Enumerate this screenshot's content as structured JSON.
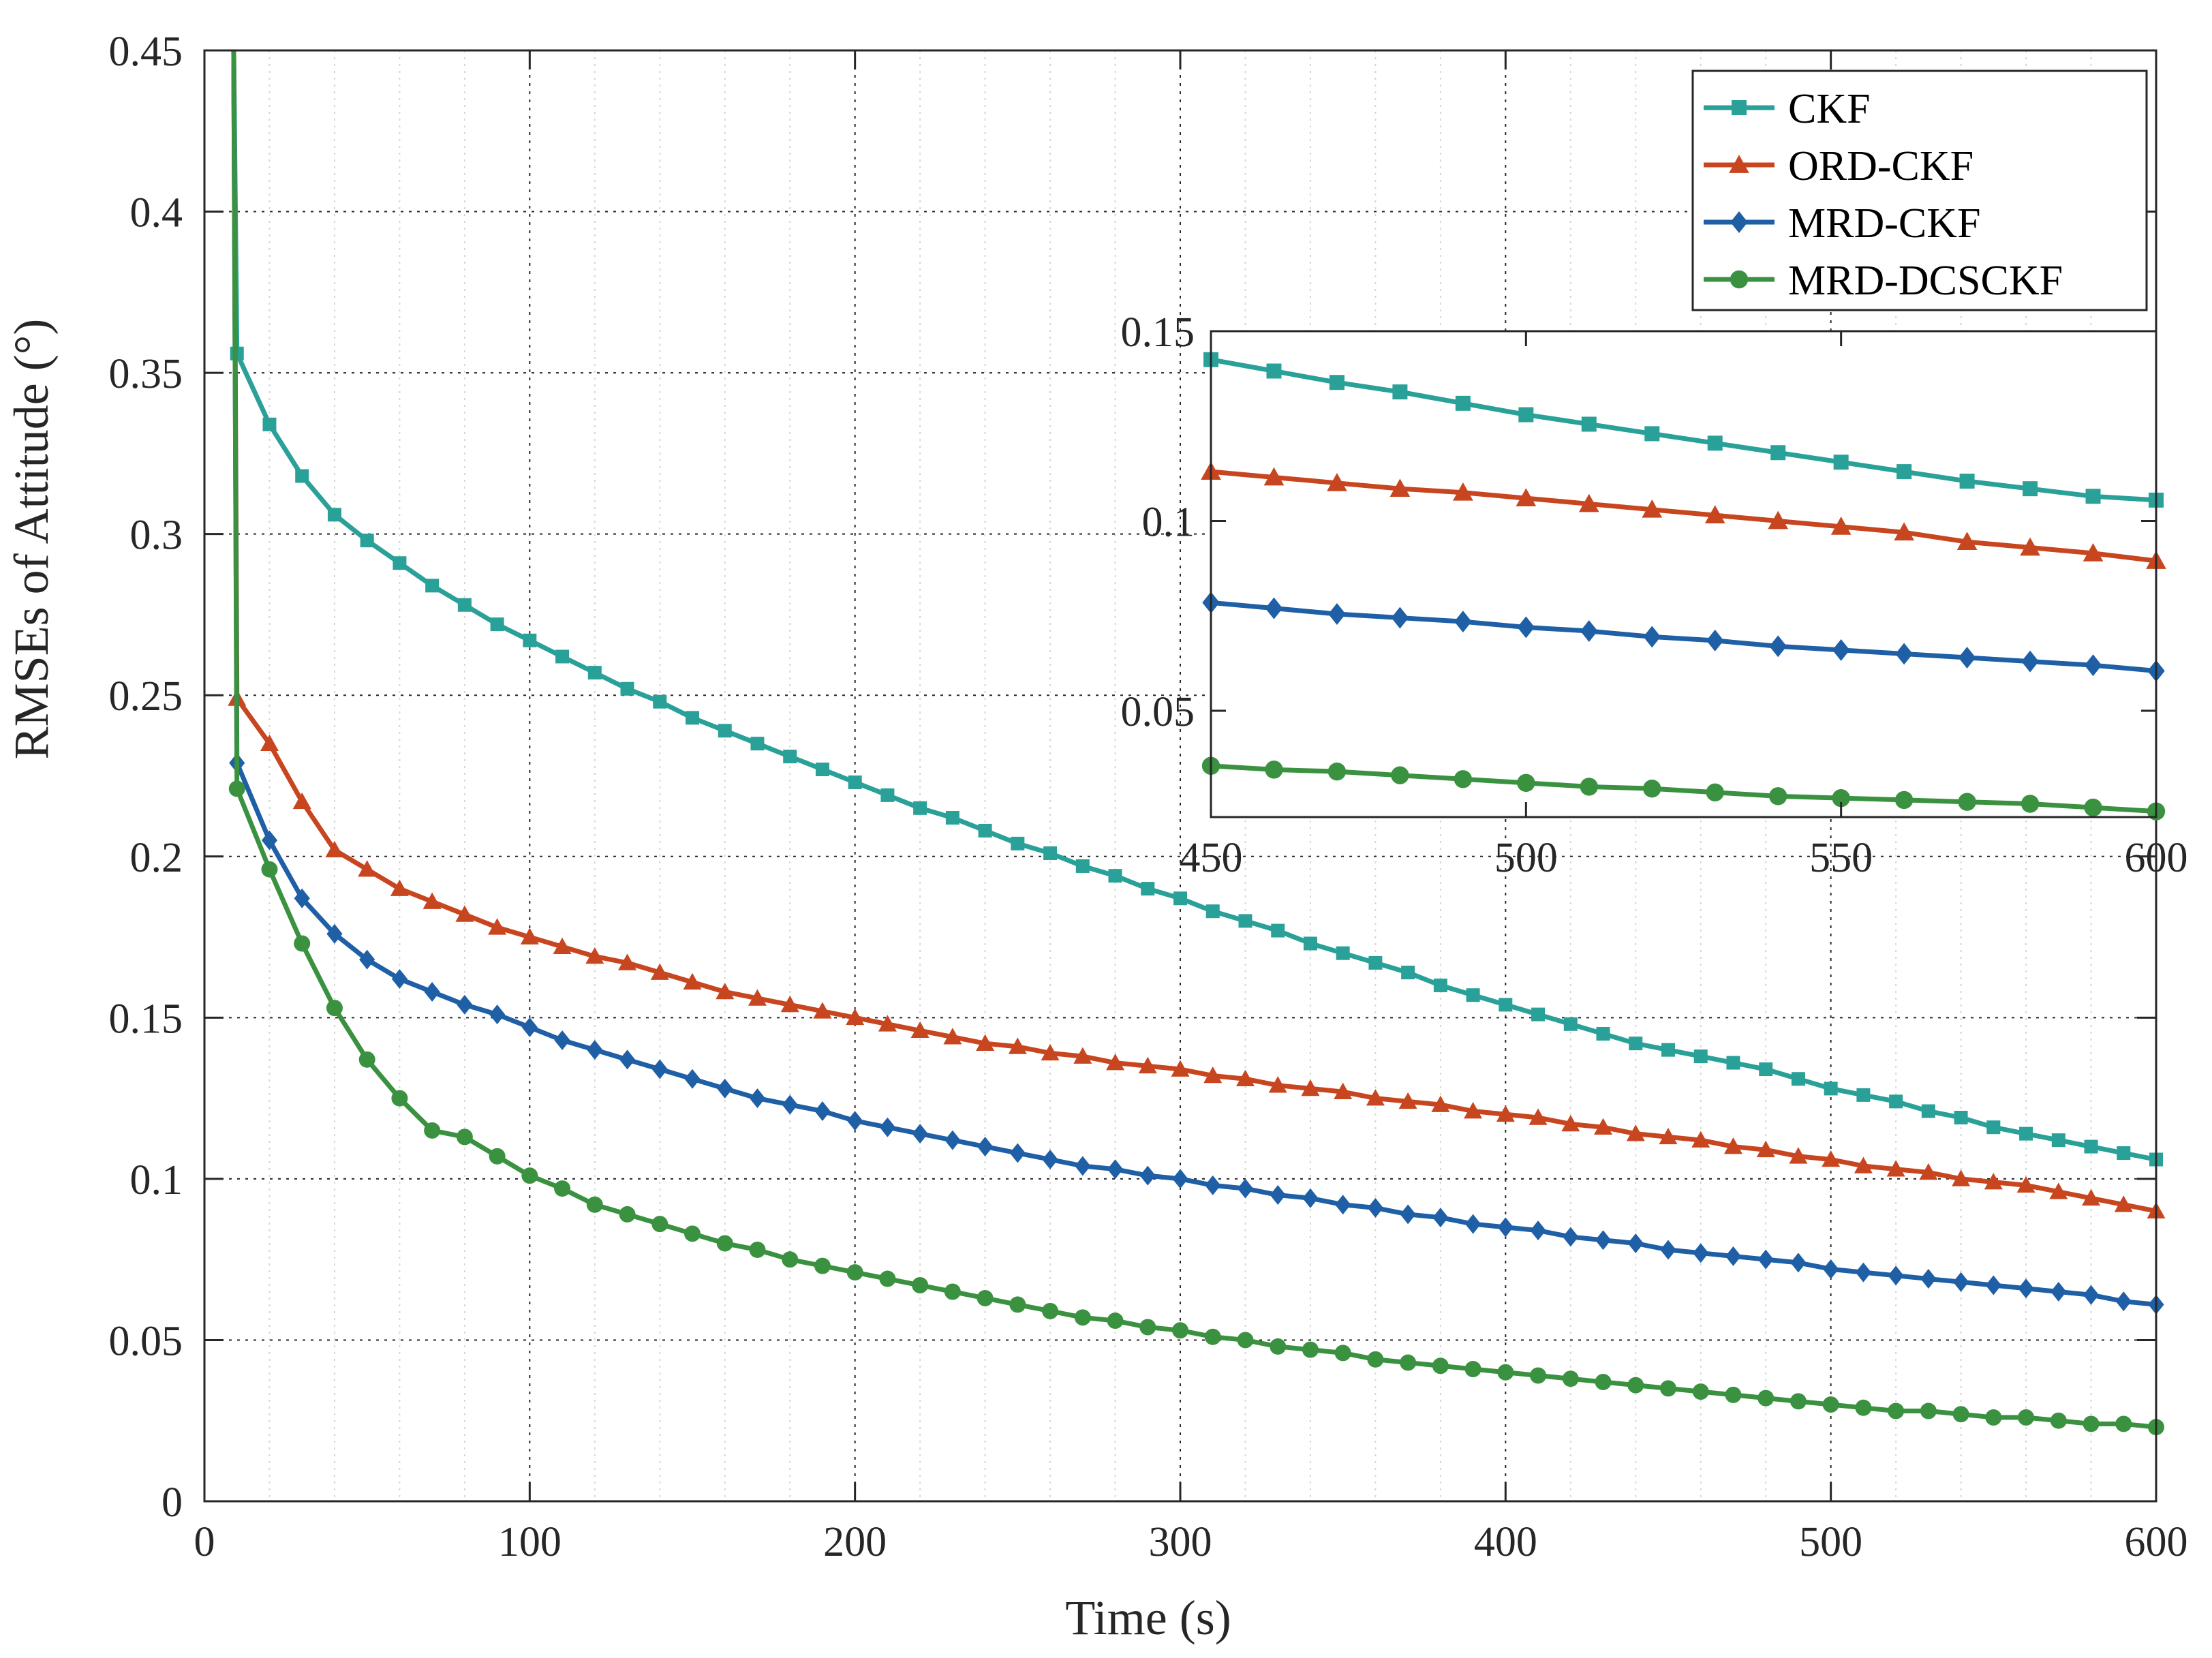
{
  "chart_data": [
    {
      "id": "main",
      "type": "line",
      "title": "",
      "xlabel": "Time (s)",
      "ylabel": "RMSEs of Attitude (°)",
      "xlim": [
        0,
        600
      ],
      "ylim": [
        0,
        0.45
      ],
      "xticks": [
        0,
        100,
        200,
        300,
        400,
        500,
        600
      ],
      "yticks": [
        0,
        0.05,
        0.1,
        0.15,
        0.2,
        0.25,
        0.3,
        0.35,
        0.4,
        0.45
      ],
      "xtick_labels": [
        "0",
        "100",
        "200",
        "300",
        "400",
        "500",
        "600"
      ],
      "ytick_labels": [
        "0",
        "0.05",
        "0.1",
        "0.15",
        "0.2",
        "0.25",
        "0.3",
        "0.35",
        "0.4",
        "0.45"
      ],
      "grid": true,
      "x": [
        10,
        20,
        30,
        40,
        50,
        60,
        70,
        80,
        90,
        100,
        110,
        120,
        130,
        140,
        150,
        160,
        170,
        180,
        190,
        200,
        210,
        220,
        230,
        240,
        250,
        260,
        270,
        280,
        290,
        300,
        310,
        320,
        330,
        340,
        350,
        360,
        370,
        380,
        390,
        400,
        410,
        420,
        430,
        440,
        450,
        460,
        470,
        480,
        490,
        500,
        510,
        520,
        530,
        540,
        550,
        560,
        570,
        580,
        590,
        600
      ],
      "series": [
        {
          "name": "CKF",
          "color": "#2aa198",
          "marker": "square",
          "start": [
            9,
            0.45
          ],
          "values": [
            0.356,
            0.334,
            0.318,
            0.306,
            0.298,
            0.291,
            0.284,
            0.278,
            0.272,
            0.267,
            0.262,
            0.257,
            0.252,
            0.248,
            0.243,
            0.239,
            0.235,
            0.231,
            0.227,
            0.223,
            0.219,
            0.215,
            0.212,
            0.208,
            0.204,
            0.201,
            0.197,
            0.194,
            0.19,
            0.187,
            0.183,
            0.18,
            0.177,
            0.173,
            0.17,
            0.167,
            0.164,
            0.16,
            0.157,
            0.154,
            0.151,
            0.148,
            0.145,
            0.142,
            0.14,
            0.138,
            0.136,
            0.134,
            0.131,
            0.128,
            0.126,
            0.124,
            0.121,
            0.119,
            0.116,
            0.114,
            0.112,
            0.11,
            0.108,
            0.106
          ]
        },
        {
          "name": "ORD-CKF",
          "color": "#c8461f",
          "marker": "triangle",
          "start": [
            9,
            0.45
          ],
          "values": [
            0.249,
            0.235,
            0.217,
            0.202,
            0.196,
            0.19,
            0.186,
            0.182,
            0.178,
            0.175,
            0.172,
            0.169,
            0.167,
            0.164,
            0.161,
            0.158,
            0.156,
            0.154,
            0.152,
            0.15,
            0.148,
            0.146,
            0.144,
            0.142,
            0.141,
            0.139,
            0.138,
            0.136,
            0.135,
            0.134,
            0.132,
            0.131,
            0.129,
            0.128,
            0.127,
            0.125,
            0.124,
            0.123,
            0.121,
            0.12,
            0.119,
            0.117,
            0.116,
            0.114,
            0.113,
            0.112,
            0.11,
            0.109,
            0.107,
            0.106,
            0.104,
            0.103,
            0.102,
            0.1,
            0.099,
            0.098,
            0.096,
            0.094,
            0.092,
            0.09
          ]
        },
        {
          "name": "MRD-CKF",
          "color": "#1f5fa6",
          "marker": "diamond",
          "start": [
            9,
            0.45
          ],
          "values": [
            0.229,
            0.205,
            0.187,
            0.176,
            0.168,
            0.162,
            0.158,
            0.154,
            0.151,
            0.147,
            0.143,
            0.14,
            0.137,
            0.134,
            0.131,
            0.128,
            0.125,
            0.123,
            0.121,
            0.118,
            0.116,
            0.114,
            0.112,
            0.11,
            0.108,
            0.106,
            0.104,
            0.103,
            0.101,
            0.1,
            0.098,
            0.097,
            0.095,
            0.094,
            0.092,
            0.091,
            0.089,
            0.088,
            0.086,
            0.085,
            0.084,
            0.082,
            0.081,
            0.08,
            0.078,
            0.077,
            0.076,
            0.075,
            0.074,
            0.072,
            0.071,
            0.07,
            0.069,
            0.068,
            0.067,
            0.066,
            0.065,
            0.064,
            0.062,
            0.061
          ]
        },
        {
          "name": "MRD-DCSCKF",
          "color": "#3a9140",
          "marker": "circle",
          "start": [
            9,
            0.45
          ],
          "values": [
            0.221,
            0.196,
            0.173,
            0.153,
            0.137,
            0.125,
            0.115,
            0.113,
            0.107,
            0.101,
            0.097,
            0.092,
            0.089,
            0.086,
            0.083,
            0.08,
            0.078,
            0.075,
            0.073,
            0.071,
            0.069,
            0.067,
            0.065,
            0.063,
            0.061,
            0.059,
            0.057,
            0.056,
            0.054,
            0.053,
            0.051,
            0.05,
            0.048,
            0.047,
            0.046,
            0.044,
            0.043,
            0.042,
            0.041,
            0.04,
            0.039,
            0.038,
            0.037,
            0.036,
            0.035,
            0.034,
            0.033,
            0.032,
            0.031,
            0.03,
            0.029,
            0.028,
            0.028,
            0.027,
            0.026,
            0.026,
            0.025,
            0.024,
            0.024,
            0.023
          ]
        }
      ],
      "legend": {
        "position": "top-right",
        "entries": [
          "CKF",
          "ORD-CKF",
          "MRD-CKF",
          "MRD-DCSCKF"
        ]
      }
    },
    {
      "id": "inset",
      "type": "line",
      "title": "",
      "xlabel": "",
      "ylabel": "",
      "xlim": [
        450,
        600
      ],
      "ylim": [
        0.022,
        0.15
      ],
      "xticks": [
        450,
        500,
        550,
        600
      ],
      "yticks": [
        0.05,
        0.1,
        0.15
      ],
      "xtick_labels": [
        "450",
        "500",
        "550",
        "600"
      ],
      "ytick_labels": [
        "0.05",
        "0.1",
        "0.15"
      ],
      "grid": false,
      "x": [
        450,
        460,
        470,
        480,
        490,
        500,
        510,
        520,
        530,
        540,
        550,
        560,
        570,
        580,
        590,
        600
      ],
      "series": [
        {
          "name": "CKF",
          "values": [
            0.1425,
            0.1395,
            0.1365,
            0.134,
            0.131,
            0.128,
            0.1255,
            0.123,
            0.1205,
            0.118,
            0.1155,
            0.113,
            0.1105,
            0.1085,
            0.1065,
            0.1055
          ]
        },
        {
          "name": "ORD-CKF",
          "values": [
            0.113,
            0.1115,
            0.11,
            0.1085,
            0.1075,
            0.106,
            0.1045,
            0.103,
            0.1015,
            0.1,
            0.0985,
            0.097,
            0.0945,
            0.093,
            0.0915,
            0.0895
          ]
        },
        {
          "name": "MRD-CKF",
          "values": [
            0.0785,
            0.077,
            0.0755,
            0.0745,
            0.0735,
            0.072,
            0.071,
            0.0695,
            0.0685,
            0.067,
            0.066,
            0.065,
            0.064,
            0.063,
            0.062,
            0.0605
          ]
        },
        {
          "name": "MRD-DCSCKF",
          "values": [
            0.0355,
            0.0345,
            0.034,
            0.033,
            0.032,
            0.031,
            0.03,
            0.0295,
            0.0285,
            0.0275,
            0.027,
            0.0265,
            0.026,
            0.0255,
            0.0245,
            0.0235
          ]
        }
      ]
    }
  ]
}
